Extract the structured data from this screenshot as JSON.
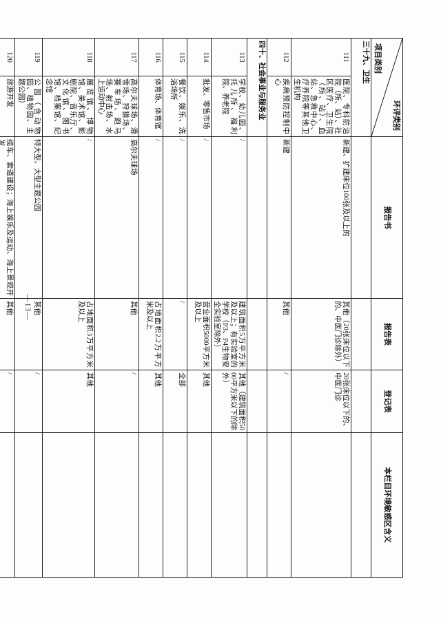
{
  "page": {
    "number": "—13—"
  },
  "table": {
    "corner": {
      "top_right": "环评类别",
      "bottom_left": "项目类别"
    },
    "columns": [
      "报告书",
      "报告表",
      "登记表",
      "本栏目环境敏感区含义"
    ],
    "rows": [
      {
        "type": "section",
        "label": "三十九、卫生"
      },
      {
        "type": "item",
        "no": "111",
        "name": "医院、专科防治院（所、站）、社区医疗、卫生院（所、站）、血站、急救中心、疗养院等其他卫生机构",
        "book": "新建、扩建床位100张及以上的",
        "form": "其他（20张床位以下的、中医门诊除外）",
        "reg": "20张床位以下的、中医门诊",
        "meaning": ""
      },
      {
        "type": "item",
        "no": "112",
        "name": "疾病预防控制中心",
        "book": "新建",
        "form": "其他",
        "reg": "/",
        "meaning": ""
      },
      {
        "type": "section",
        "label": "四十、社会事业与服务业"
      },
      {
        "type": "item",
        "no": "113",
        "name": "学校、幼儿园、托儿所、福利院、养老院",
        "book": "/",
        "form": "建筑面积5万平方米及以上；有实验室的学校（P3、P4生物安全实验室除外）",
        "reg": "其他（建筑面积5000平方米以下的除外）",
        "meaning": ""
      },
      {
        "type": "item",
        "no": "114",
        "name": "批发、零售市场",
        "book": "/",
        "form": "营业面积5000平方米及以上",
        "reg": "其他",
        "meaning": ""
      },
      {
        "type": "item",
        "no": "115",
        "name": "餐饮、娱乐、洗浴场所",
        "book": "/",
        "form": "/",
        "reg": "全部",
        "meaning": ""
      },
      {
        "type": "item",
        "no": "116",
        "name": "体育场、体育馆",
        "book": "/",
        "form": "占地面积2.2万平方米及以上",
        "reg": "其他",
        "meaning": ""
      },
      {
        "type": "item",
        "no": "117",
        "name": "高尔夫球场、滑雪场、狩猎场、赛车场、跑马场、射击场、水上运动中心",
        "book": "高尔夫球场",
        "form": "其他",
        "reg": "/",
        "meaning": ""
      },
      {
        "type": "item",
        "no": "118",
        "name": "展览馆、博物馆、美术馆、影剧院、音乐厅、文化馆、图书馆、档案馆、纪念馆",
        "book": "/",
        "form": "占地面积3万平方米及以上",
        "reg": "其他",
        "meaning": ""
      },
      {
        "type": "item",
        "no": "119",
        "name": "公园（含动物园、植物园、主题公园）",
        "book": "特大型、大型主题公园",
        "form": "其他",
        "reg": "/",
        "meaning": ""
      },
      {
        "type": "item",
        "no": "120",
        "name": "旅游开发",
        "book": "缆车、索道建设；海上娱乐及运动、海上景观开发",
        "form": "其他",
        "reg": "/",
        "meaning": ""
      }
    ]
  }
}
